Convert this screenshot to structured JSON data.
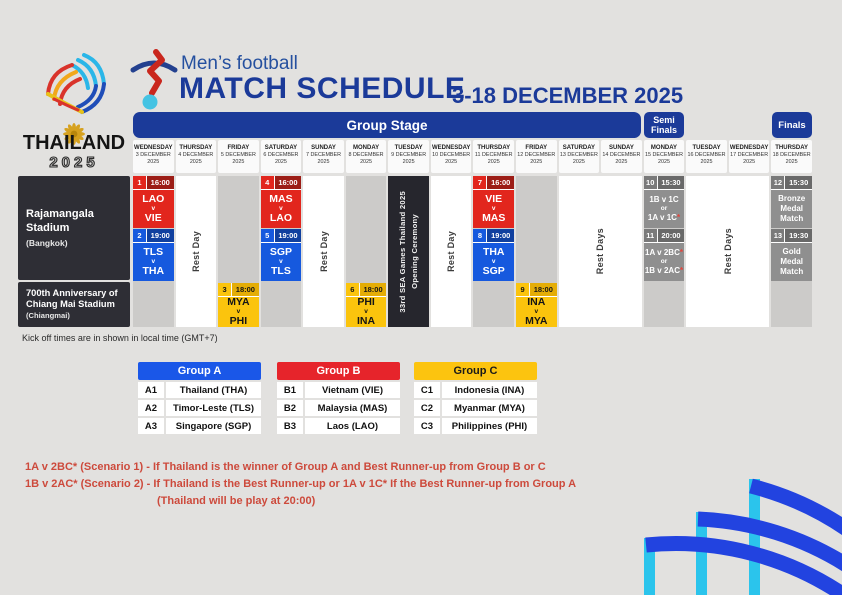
{
  "colors": {
    "navy": "#1b3a99",
    "page_bg": "#e2e1df",
    "column_gray": "#cccbc9",
    "ceremony_dark": "#26262d",
    "venue_dark": "#2e2e35",
    "footnote_red": "#cd4a3c",
    "arc_blue": "#2243e0",
    "arc_cyan": "#2bc4ec"
  },
  "logo": {
    "name": "THAILAND",
    "year": "2025"
  },
  "header": {
    "sport": "Men’s football",
    "title": "MATCH SCHEDULE",
    "date_range": "3-18 DECEMBER 2025"
  },
  "schedule": {
    "stage_bands": {
      "group": "Group Stage",
      "semi": "Semi Finals",
      "finals": "Finals"
    },
    "note": "Kick off times are in shown in local time (GMT+7)",
    "venues": [
      {
        "name": "Rajamangala Stadium",
        "city": "(Bangkok)"
      },
      {
        "name": "700th Anniversary of Chiang Mai Stadium",
        "city": "(Chiangmai)"
      }
    ],
    "days": [
      {
        "day": "WEDNESDAY",
        "date": "3 DECEMBER",
        "year": "2025"
      },
      {
        "day": "THURSDAY",
        "date": "4 DECEMBER",
        "year": "2025"
      },
      {
        "day": "FRIDAY",
        "date": "5 DECEMBER",
        "year": "2025"
      },
      {
        "day": "SATURDAY",
        "date": "6 DECEMBER",
        "year": "2025"
      },
      {
        "day": "SUNDAY",
        "date": "7 DECEMBER",
        "year": "2025"
      },
      {
        "day": "MONDAY",
        "date": "8 DECEMBER",
        "year": "2025"
      },
      {
        "day": "TUESDAY",
        "date": "9 DECEMBER",
        "year": "2025"
      },
      {
        "day": "WEDNESDAY",
        "date": "10 DECEMBER",
        "year": "2025"
      },
      {
        "day": "THURSDAY",
        "date": "11 DECEMBER",
        "year": "2025"
      },
      {
        "day": "FRIDAY",
        "date": "12 DECEMBER",
        "year": "2025"
      },
      {
        "day": "SATURDAY",
        "date": "13 DECEMBER",
        "year": "2025"
      },
      {
        "day": "SUNDAY",
        "date": "14 DECEMBER",
        "year": "2025"
      },
      {
        "day": "MONDAY",
        "date": "15 DECEMBER",
        "year": "2025"
      },
      {
        "day": "TUESDAY",
        "date": "16 DECEMBER",
        "year": "2025"
      },
      {
        "day": "WEDNESDAY",
        "date": "17 DECEMBER",
        "year": "2025"
      },
      {
        "day": "THURSDAY",
        "date": "18 DECEMBER",
        "year": "2025"
      }
    ],
    "palette": {
      "red": {
        "body": "#e2261d",
        "num": "#e2261d",
        "time": "#9c1d16",
        "text": "#ffffff"
      },
      "blue": {
        "body": "#1659de",
        "num": "#1659de",
        "time": "#10409f",
        "text": "#ffffff"
      },
      "yellow": {
        "body": "#fbc40d",
        "num": "#fbc40d",
        "time": "#e4ad06",
        "text": "#151515"
      },
      "gray": {
        "body": "#8f8f8f",
        "num": "#7a7a7a",
        "time": "#696969",
        "text": "#ffffff"
      }
    },
    "columns": [
      {
        "kind": "matches",
        "bangkok": [
          {
            "no": "1",
            "time": "16:00",
            "palette": "red",
            "lines": [
              "LAO",
              "v",
              "VIE"
            ]
          },
          {
            "no": "2",
            "time": "19:00",
            "palette": "blue",
            "lines": [
              "TLS",
              "v",
              "THA"
            ]
          }
        ]
      },
      {
        "kind": "rest",
        "span": 1,
        "label": "Rest Day"
      },
      {
        "kind": "matches",
        "chiangmai": {
          "no": "3",
          "time": "18:00",
          "palette": "yellow",
          "lines": [
            "MYA",
            "v",
            "PHI"
          ]
        }
      },
      {
        "kind": "matches",
        "bangkok": [
          {
            "no": "4",
            "time": "16:00",
            "palette": "red",
            "lines": [
              "MAS",
              "v",
              "LAO"
            ]
          },
          {
            "no": "5",
            "time": "19:00",
            "palette": "blue",
            "lines": [
              "SGP",
              "v",
              "TLS"
            ]
          }
        ]
      },
      {
        "kind": "rest",
        "span": 1,
        "label": "Rest Day"
      },
      {
        "kind": "matches",
        "chiangmai": {
          "no": "6",
          "time": "18:00",
          "palette": "yellow",
          "lines": [
            "PHI",
            "v",
            "INA"
          ]
        }
      },
      {
        "kind": "ceremony",
        "lines": [
          "33rd SEA Games Thailand 2025",
          "Opening Ceremony"
        ]
      },
      {
        "kind": "rest",
        "span": 1,
        "label": "Rest Day"
      },
      {
        "kind": "matches",
        "bangkok": [
          {
            "no": "7",
            "time": "16:00",
            "palette": "red",
            "lines": [
              "VIE",
              "v",
              "MAS"
            ]
          },
          {
            "no": "8",
            "time": "19:00",
            "palette": "blue",
            "lines": [
              "THA",
              "v",
              "SGP"
            ]
          }
        ]
      },
      {
        "kind": "matches",
        "chiangmai": {
          "no": "9",
          "time": "18:00",
          "palette": "yellow",
          "lines": [
            "INA",
            "v",
            "MYA"
          ]
        }
      },
      {
        "kind": "rest",
        "span": 2,
        "label": "Rest Days"
      },
      {
        "kind": "matches",
        "bangkok": [
          {
            "no": "10",
            "time": "15:30",
            "palette": "gray",
            "text": true,
            "lines": [
              "1B v 1C",
              "or",
              "1A v 1C*"
            ]
          },
          {
            "no": "11",
            "time": "20:00",
            "palette": "gray",
            "text": true,
            "lines": [
              "1A v 2BC*",
              "or",
              "1B v 2AC*"
            ]
          }
        ]
      },
      {
        "kind": "rest",
        "span": 2,
        "label": "Rest Days"
      },
      {
        "kind": "matches",
        "bangkok": [
          {
            "no": "12",
            "time": "15:30",
            "palette": "gray",
            "text": true,
            "lines": [
              "Bronze",
              "Medal",
              "Match"
            ]
          },
          {
            "no": "13",
            "time": "19:30",
            "palette": "gray",
            "text": true,
            "lines": [
              "Gold",
              "Medal",
              "Match"
            ]
          }
        ]
      }
    ]
  },
  "groups": [
    {
      "label": "Group A",
      "bg": "#1a57e8",
      "fg": "#ffffff",
      "rows": [
        [
          "A1",
          "Thailand (THA)"
        ],
        [
          "A2",
          "Timor-Leste (TLS)"
        ],
        [
          "A3",
          "Singapore (SGP)"
        ]
      ]
    },
    {
      "label": "Group B",
      "bg": "#e6242b",
      "fg": "#ffffff",
      "rows": [
        [
          "B1",
          "Vietnam (VIE)"
        ],
        [
          "B2",
          "Malaysia (MAS)"
        ],
        [
          "B3",
          "Laos (LAO)"
        ]
      ]
    },
    {
      "label": "Group C",
      "bg": "#fcc40f",
      "fg": "#1a1a1a",
      "rows": [
        [
          "C1",
          "Indonesia (INA)"
        ],
        [
          "C2",
          "Myanmar (MYA)"
        ],
        [
          "C3",
          "Philippines (PHI)"
        ]
      ]
    }
  ],
  "footnotes": [
    "1A v 2BC* (Scenario 1) - If Thailand is the winner of Group A and Best Runner-up from Group B or C",
    "1B v 2AC* (Scenario 2) - If Thailand is the Best Runner-up or 1A v 1C* If the Best Runner-up from Group A",
    "(Thailand will be play at 20:00)"
  ]
}
